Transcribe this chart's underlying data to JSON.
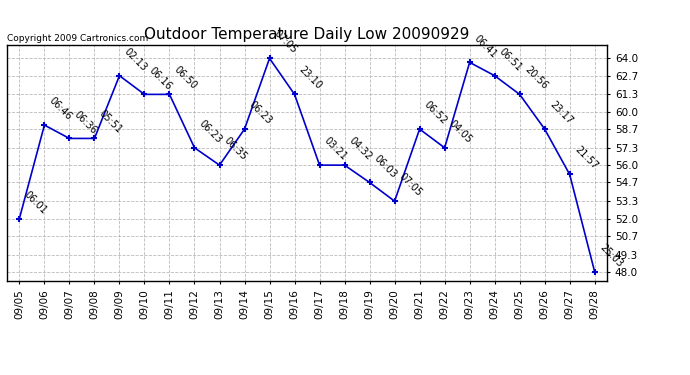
{
  "title": "Outdoor Temperature Daily Low 20090929",
  "copyright": "Copyright 2009 Cartronics.com",
  "dates": [
    "09/05",
    "09/06",
    "09/07",
    "09/08",
    "09/09",
    "09/10",
    "09/11",
    "09/12",
    "09/13",
    "09/14",
    "09/15",
    "09/16",
    "09/17",
    "09/18",
    "09/19",
    "09/20",
    "09/21",
    "09/22",
    "09/23",
    "09/24",
    "09/25",
    "09/26",
    "09/27",
    "09/28"
  ],
  "temps": [
    52.0,
    59.0,
    58.0,
    58.0,
    62.7,
    61.3,
    61.3,
    57.3,
    56.0,
    58.7,
    64.0,
    61.3,
    56.0,
    56.0,
    54.7,
    53.3,
    58.7,
    57.3,
    63.7,
    62.7,
    61.3,
    58.7,
    55.3,
    48.0
  ],
  "times": [
    "06:01",
    "06:46",
    "06:36",
    "05:51",
    "02:13",
    "06:16",
    "06:50",
    "06:23",
    "06:35",
    "06:23",
    "07:05",
    "23:10",
    "03:21",
    "04:32",
    "06:03",
    "07:05",
    "06:52",
    "04:05",
    "06:41",
    "06:51",
    "20:56",
    "23:17",
    "21:57",
    "25:03"
  ],
  "line_color": "#0000cc",
  "marker_color": "#0000cc",
  "background_color": "#ffffff",
  "grid_color": "#aaaaaa",
  "title_fontsize": 11,
  "annotation_fontsize": 7,
  "tick_fontsize": 7.5,
  "copyright_fontsize": 6.5,
  "yticks": [
    48.0,
    49.3,
    50.7,
    52.0,
    53.3,
    54.7,
    56.0,
    57.3,
    58.7,
    60.0,
    61.3,
    62.7,
    64.0
  ],
  "ylim": [
    47.3,
    65.0
  ]
}
